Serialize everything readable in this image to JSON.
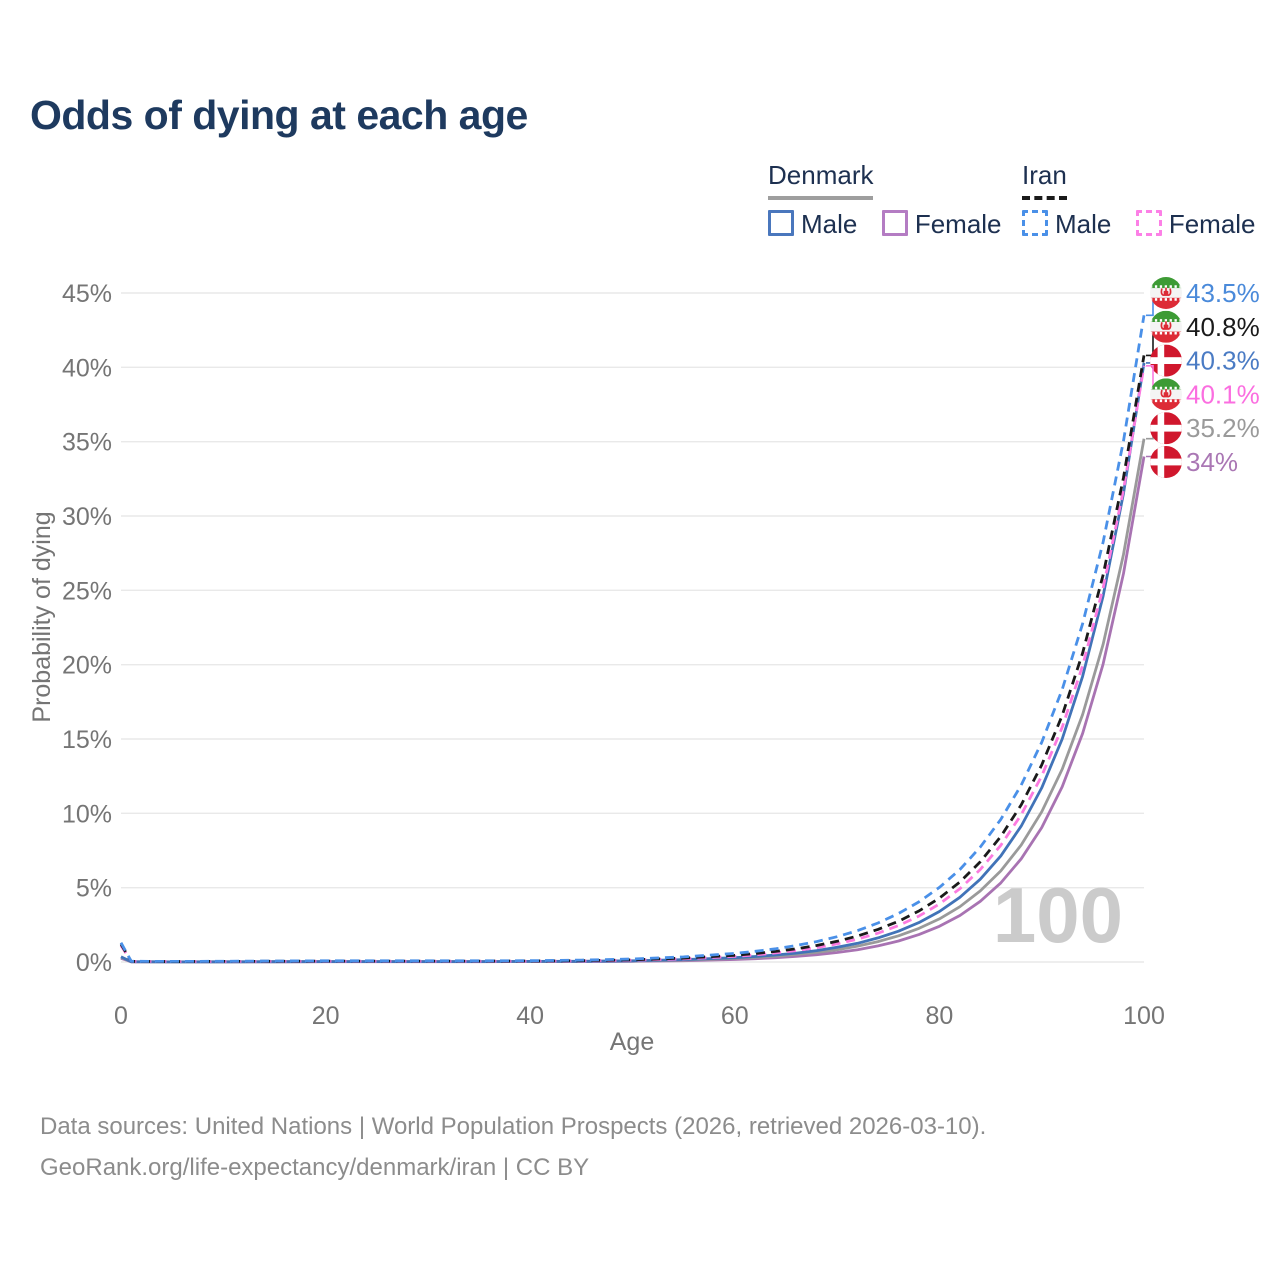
{
  "header": {
    "title": "Odds of dying at each age"
  },
  "legend": {
    "groups": [
      {
        "label": "Denmark",
        "line_style": "solid",
        "line_color": "#9e9e9e",
        "items": [
          {
            "label": "Male",
            "color": "#4a77bd",
            "style": "solid"
          },
          {
            "label": "Female",
            "color": "#b47cc3",
            "style": "solid"
          }
        ]
      },
      {
        "label": "Iran",
        "line_style": "dashed",
        "line_color": "#1a1a1a",
        "items": [
          {
            "label": "Male",
            "color": "#4a90e8",
            "style": "dashed"
          },
          {
            "label": "Female",
            "color": "#fc80e6",
            "style": "dashed"
          }
        ]
      }
    ]
  },
  "chart_data": {
    "type": "line",
    "title": "Odds of dying at each age",
    "xlabel": "Age",
    "ylabel": "Probability of dying",
    "xlim": [
      0,
      100
    ],
    "ylim": [
      0,
      45
    ],
    "xticks": [
      0,
      20,
      40,
      60,
      80,
      100
    ],
    "yticks": [
      0,
      5,
      10,
      15,
      20,
      25,
      30,
      35,
      40,
      45
    ],
    "y_unit": "%",
    "grid": true,
    "legend_position": "top-right",
    "watermark": "100",
    "ages": [
      0,
      1,
      5,
      10,
      15,
      20,
      25,
      30,
      35,
      40,
      45,
      50,
      55,
      60,
      62,
      64,
      66,
      68,
      70,
      72,
      74,
      76,
      78,
      80,
      82,
      84,
      86,
      88,
      90,
      92,
      94,
      96,
      98,
      100
    ],
    "series": [
      {
        "name": "Iran Male",
        "country": "Iran",
        "flag": "iran",
        "color": "#4a90e8",
        "label_color": "#4a8ada",
        "dash": true,
        "end_label": "43.5%",
        "end_value": 43.5,
        "values": [
          1.3,
          0.05,
          0.04,
          0.05,
          0.07,
          0.08,
          0.08,
          0.08,
          0.08,
          0.09,
          0.13,
          0.2,
          0.34,
          0.58,
          0.72,
          0.89,
          1.11,
          1.37,
          1.7,
          2.11,
          2.62,
          3.26,
          4.04,
          5.02,
          6.22,
          7.73,
          9.59,
          11.9,
          14.77,
          18.33,
          22.75,
          28.24,
          35.05,
          43.5
        ]
      },
      {
        "name": "Iran",
        "country": "Iran",
        "flag": "iran",
        "color": "#1a1a1a",
        "label_color": "#1a1a1a",
        "dash": true,
        "end_label": "40.8%",
        "end_value": 40.8,
        "values": [
          1.2,
          0.04,
          0.03,
          0.04,
          0.05,
          0.06,
          0.06,
          0.06,
          0.06,
          0.07,
          0.09,
          0.15,
          0.26,
          0.45,
          0.57,
          0.71,
          0.89,
          1.11,
          1.39,
          1.75,
          2.19,
          2.74,
          3.43,
          4.3,
          5.38,
          6.74,
          8.44,
          10.57,
          13.25,
          16.59,
          20.78,
          26.03,
          32.58,
          40.8
        ]
      },
      {
        "name": "Denmark Male",
        "country": "Denmark",
        "flag": "denmark",
        "color": "#4173b8",
        "label_color": "#4a7bc4",
        "dash": false,
        "end_label": "40.3%",
        "end_value": 40.3,
        "values": [
          0.35,
          0.02,
          0.01,
          0.015,
          0.02,
          0.03,
          0.03,
          0.03,
          0.03,
          0.04,
          0.05,
          0.08,
          0.16,
          0.29,
          0.37,
          0.47,
          0.6,
          0.77,
          0.99,
          1.26,
          1.62,
          2.07,
          2.65,
          3.4,
          4.35,
          5.57,
          7.14,
          9.14,
          11.71,
          15.0,
          19.21,
          24.61,
          31.52,
          40.3
        ]
      },
      {
        "name": "Iran Female",
        "country": "Iran",
        "flag": "iran",
        "color": "#fc7be0",
        "label_color": "#fb6ee0",
        "dash": true,
        "end_label": "40.1%",
        "end_value": 40.1,
        "values": [
          1.1,
          0.04,
          0.03,
          0.03,
          0.04,
          0.05,
          0.05,
          0.05,
          0.05,
          0.05,
          0.07,
          0.12,
          0.21,
          0.38,
          0.48,
          0.61,
          0.77,
          0.97,
          1.22,
          1.54,
          1.94,
          2.45,
          3.09,
          3.9,
          4.93,
          6.22,
          7.85,
          9.91,
          12.51,
          15.79,
          19.93,
          25.16,
          31.76,
          40.1
        ]
      },
      {
        "name": "Denmark",
        "country": "Denmark",
        "flag": "denmark",
        "color": "#9a9a9a",
        "label_color": "#9a9a9a",
        "dash": false,
        "end_label": "35.2%",
        "end_value": 35.2,
        "values": [
          0.3,
          0.02,
          0.01,
          0.012,
          0.02,
          0.025,
          0.025,
          0.025,
          0.025,
          0.03,
          0.04,
          0.07,
          0.13,
          0.24,
          0.31,
          0.39,
          0.51,
          0.65,
          0.83,
          1.07,
          1.37,
          1.76,
          2.26,
          2.9,
          3.72,
          4.78,
          6.13,
          7.87,
          10.1,
          12.97,
          16.64,
          21.36,
          27.42,
          35.2
        ]
      },
      {
        "name": "Denmark Female",
        "country": "Denmark",
        "flag": "denmark",
        "color": "#a873b2",
        "label_color": "#aa77b4",
        "dash": false,
        "end_label": "34%",
        "end_value": 34,
        "values": [
          0.25,
          0.015,
          0.008,
          0.01,
          0.015,
          0.02,
          0.02,
          0.02,
          0.02,
          0.025,
          0.03,
          0.05,
          0.09,
          0.17,
          0.22,
          0.29,
          0.38,
          0.49,
          0.64,
          0.83,
          1.08,
          1.41,
          1.84,
          2.4,
          3.13,
          4.08,
          5.32,
          6.94,
          9.04,
          11.79,
          15.37,
          20.04,
          26.13,
          34.0
        ]
      }
    ]
  },
  "footer": {
    "line1": "Data sources: United Nations | World Population Prospects (2026, retrieved 2026-03-10).",
    "line2": "GeoRank.org/life-expectancy/denmark/iran | CC BY"
  }
}
